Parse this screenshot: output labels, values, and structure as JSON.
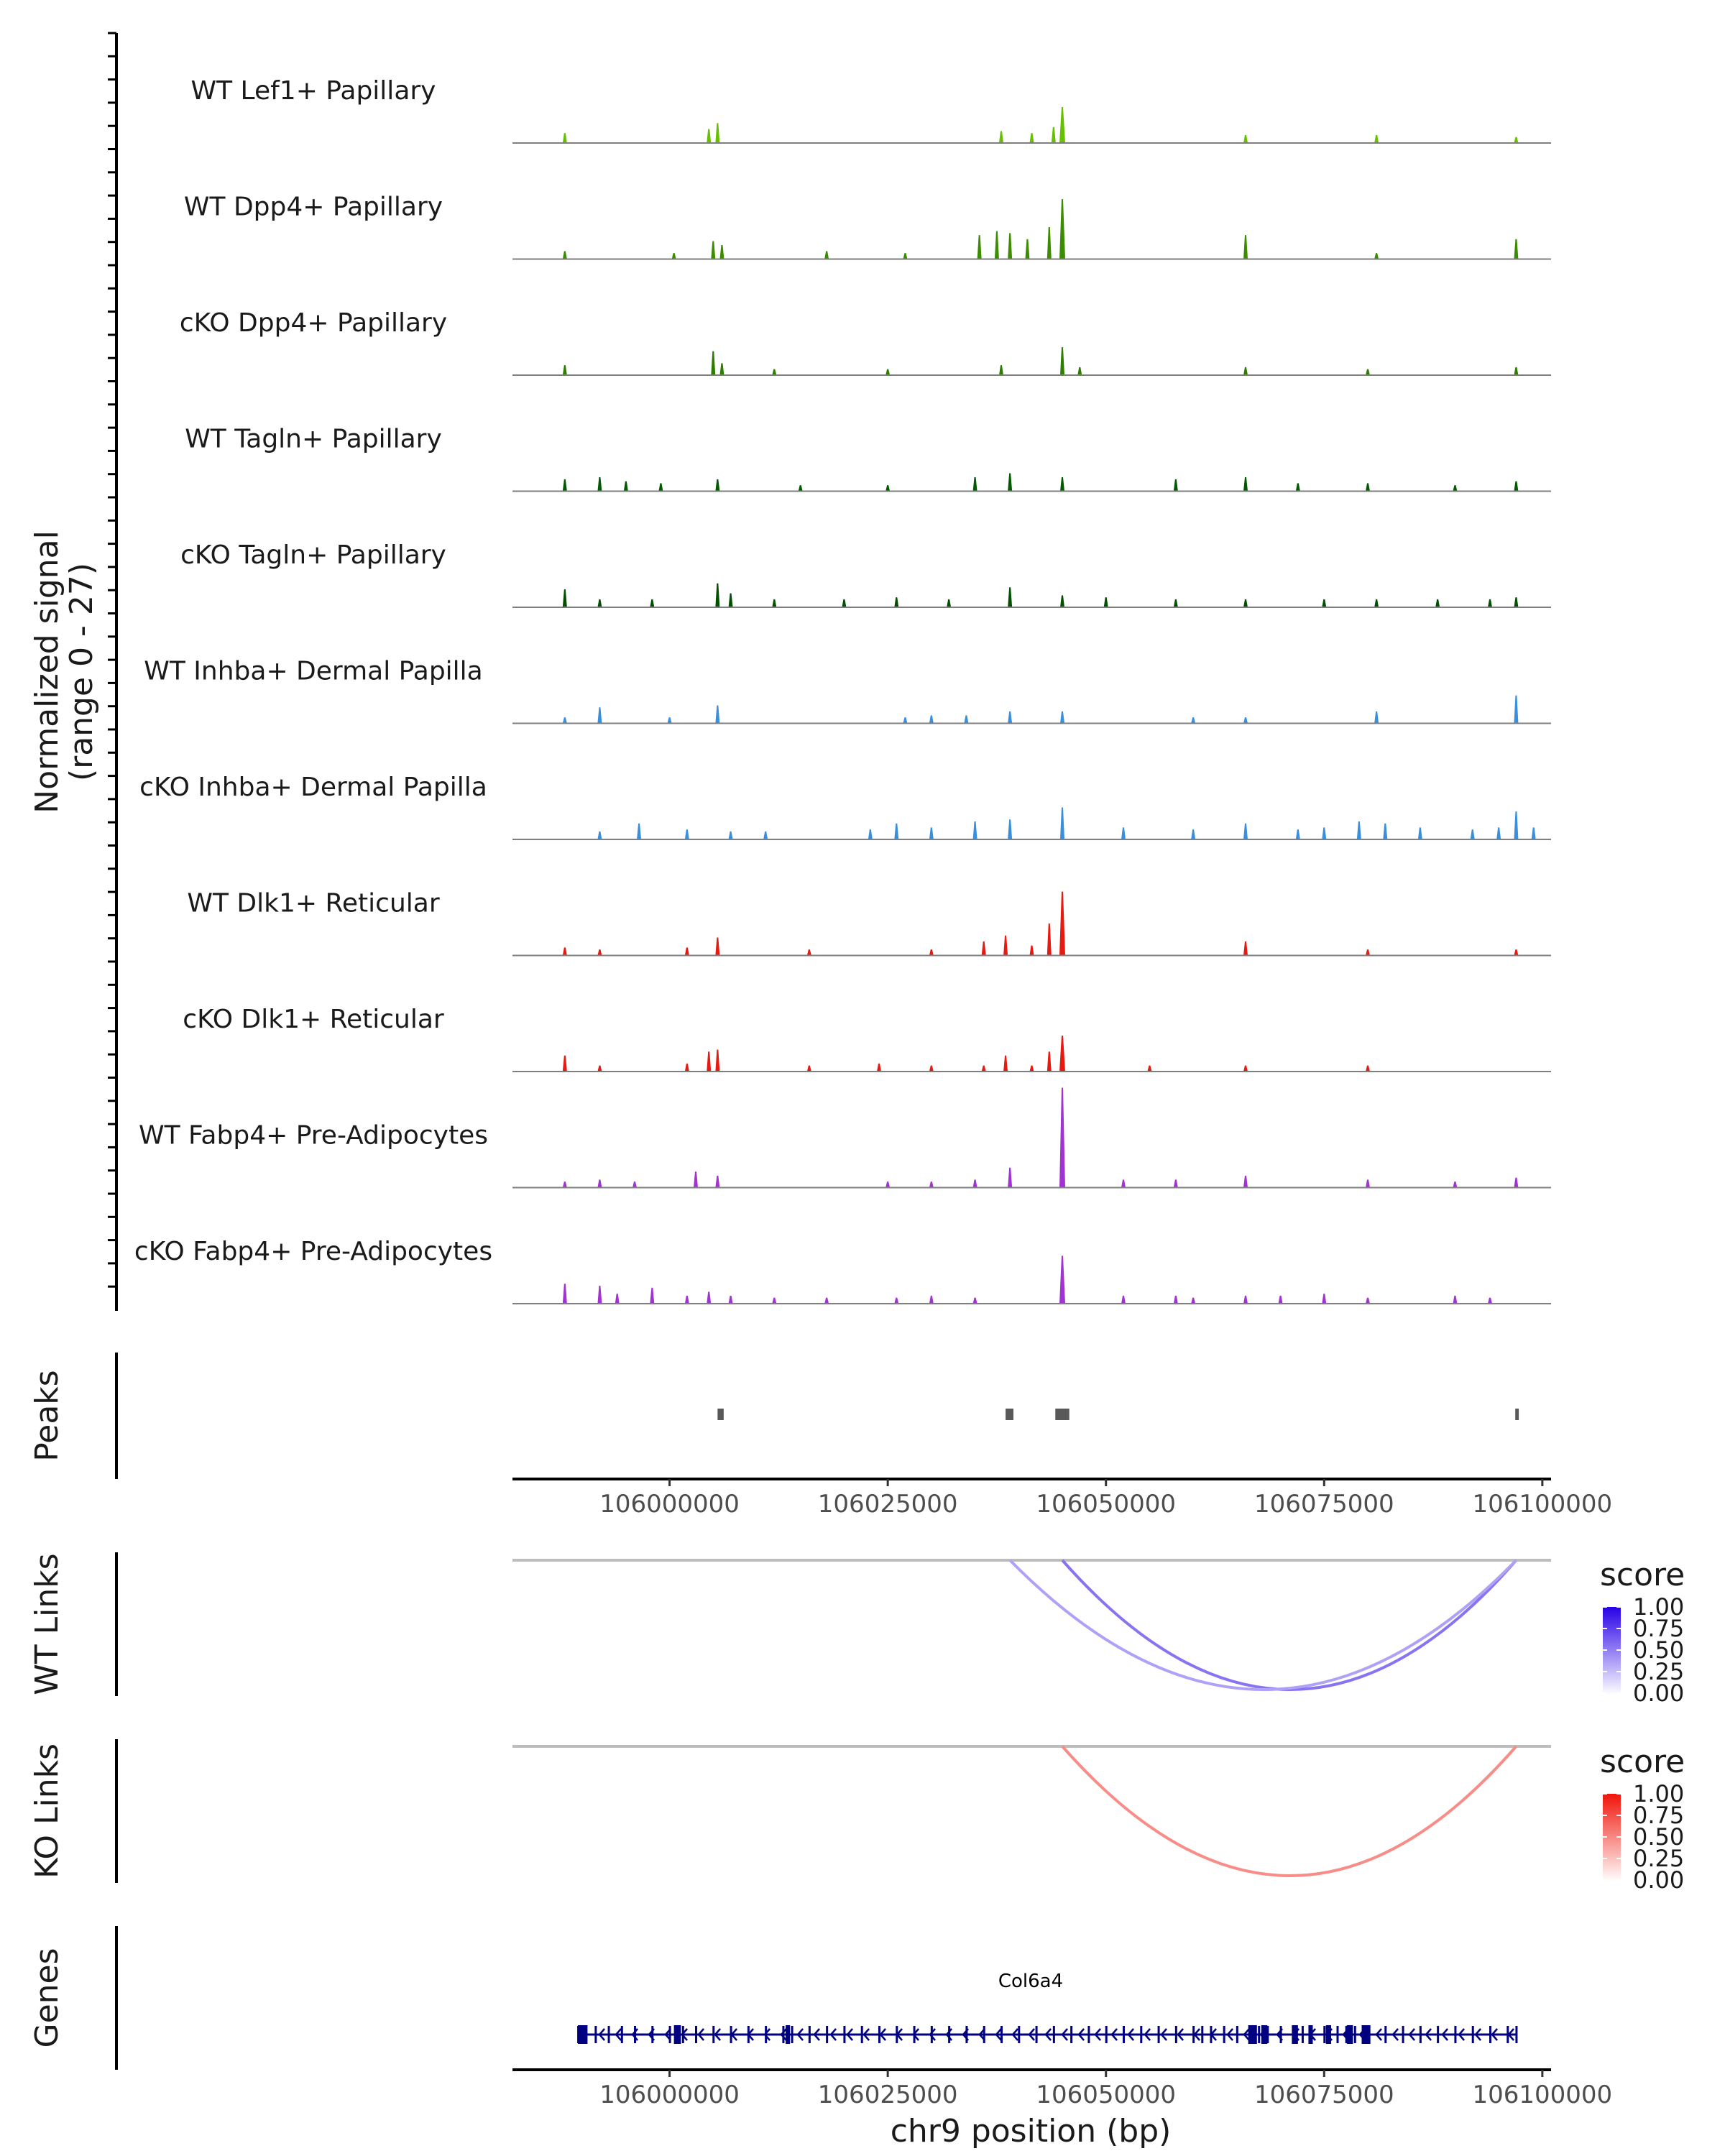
{
  "chart_data": {
    "type": "genome-coverage-plot",
    "region": {
      "chromosome": "chr9",
      "start": 105982000,
      "end": 106101000
    },
    "xlabel": "chr9 position (bp)",
    "x_ticks": [
      106000000,
      106025000,
      106050000,
      106075000,
      106100000
    ],
    "x_tick_labels": [
      "106000000",
      "106025000",
      "106050000",
      "106075000",
      "106100000"
    ],
    "coverage": {
      "ylabel_line1": "Normalized signal",
      "ylabel_line2": "(range 0 - 27)",
      "ylim": [
        0,
        27
      ],
      "tracks": [
        {
          "name": "WT Lef1+ Papillary",
          "color": "#66c000",
          "peaks": [
            [
              105988000,
              2.5
            ],
            [
              106004500,
              3.5
            ],
            [
              106005500,
              5
            ],
            [
              106038000,
              3
            ],
            [
              106041500,
              2.5
            ],
            [
              106044000,
              4
            ],
            [
              106045000,
              9
            ],
            [
              106066000,
              2
            ],
            [
              106081000,
              2
            ],
            [
              106097000,
              1.5
            ]
          ]
        },
        {
          "name": "WT Dpp4+ Papillary",
          "color": "#3c8c00",
          "peaks": [
            [
              105988000,
              2
            ],
            [
              106000500,
              1.5
            ],
            [
              106005000,
              4.5
            ],
            [
              106006000,
              3.5
            ],
            [
              106018000,
              2
            ],
            [
              106027000,
              1.5
            ],
            [
              106035500,
              6
            ],
            [
              106037500,
              7
            ],
            [
              106039000,
              6.5
            ],
            [
              106041000,
              5
            ],
            [
              106043500,
              8
            ],
            [
              106045000,
              15
            ],
            [
              106066000,
              6
            ],
            [
              106081000,
              1.5
            ],
            [
              106097000,
              5
            ]
          ]
        },
        {
          "name": "cKO Dpp4+ Papillary",
          "color": "#2e7d00",
          "peaks": [
            [
              105988000,
              2.5
            ],
            [
              106005000,
              6
            ],
            [
              106006000,
              3
            ],
            [
              106012000,
              1.5
            ],
            [
              106025000,
              1.5
            ],
            [
              106038000,
              2.5
            ],
            [
              106045000,
              7
            ],
            [
              106047000,
              2
            ],
            [
              106066000,
              2
            ],
            [
              106080000,
              1.5
            ],
            [
              106097000,
              2
            ]
          ]
        },
        {
          "name": "WT Tagln+ Papillary",
          "color": "#005a00",
          "peaks": [
            [
              105988000,
              3
            ],
            [
              105992000,
              3.5
            ],
            [
              105995000,
              2.5
            ],
            [
              105999000,
              2
            ],
            [
              106005500,
              3
            ],
            [
              106015000,
              1.5
            ],
            [
              106025000,
              1.5
            ],
            [
              106035000,
              3.5
            ],
            [
              106039000,
              4.5
            ],
            [
              106045000,
              3.5
            ],
            [
              106058000,
              3
            ],
            [
              106066000,
              3.5
            ],
            [
              106072000,
              2
            ],
            [
              106080000,
              2
            ],
            [
              106090000,
              1.5
            ],
            [
              106097000,
              2.5
            ]
          ]
        },
        {
          "name": "cKO Tagln+ Papillary",
          "color": "#005000",
          "peaks": [
            [
              105988000,
              4.5
            ],
            [
              105992000,
              2
            ],
            [
              105998000,
              2
            ],
            [
              106005500,
              6
            ],
            [
              106007000,
              3.5
            ],
            [
              106012000,
              2
            ],
            [
              106020000,
              2
            ],
            [
              106026000,
              2.5
            ],
            [
              106032000,
              2
            ],
            [
              106039000,
              5
            ],
            [
              106045000,
              3
            ],
            [
              106050000,
              2.5
            ],
            [
              106058000,
              2
            ],
            [
              106066000,
              2
            ],
            [
              106075000,
              2
            ],
            [
              106081000,
              2
            ],
            [
              106088000,
              2
            ],
            [
              106094000,
              2
            ],
            [
              106097000,
              2.5
            ]
          ]
        },
        {
          "name": "WT Inhba+ Dermal Papilla",
          "color": "#3a8fdc",
          "peaks": [
            [
              105988000,
              1.5
            ],
            [
              105992000,
              4
            ],
            [
              106000000,
              1.5
            ],
            [
              106005500,
              4.5
            ],
            [
              106027000,
              1.5
            ],
            [
              106030000,
              2
            ],
            [
              106034000,
              2
            ],
            [
              106039000,
              3
            ],
            [
              106045000,
              3
            ],
            [
              106060000,
              1.5
            ],
            [
              106066000,
              1.5
            ],
            [
              106081000,
              3
            ],
            [
              106097000,
              7
            ]
          ]
        },
        {
          "name": "cKO Inhba+ Dermal Papilla",
          "color": "#3a8fdc",
          "peaks": [
            [
              105992000,
              2
            ],
            [
              105996500,
              4
            ],
            [
              106002000,
              2.5
            ],
            [
              106007000,
              2
            ],
            [
              106011000,
              2
            ],
            [
              106023000,
              2.5
            ],
            [
              106026000,
              4
            ],
            [
              106030000,
              3
            ],
            [
              106035000,
              4.5
            ],
            [
              106039000,
              5
            ],
            [
              106045000,
              8
            ],
            [
              106052000,
              3
            ],
            [
              106060000,
              2.5
            ],
            [
              106066000,
              4
            ],
            [
              106072000,
              2.5
            ],
            [
              106075000,
              3
            ],
            [
              106079000,
              4.5
            ],
            [
              106082000,
              4
            ],
            [
              106086000,
              3
            ],
            [
              106092000,
              2.5
            ],
            [
              106095000,
              3
            ],
            [
              106097000,
              7
            ],
            [
              106099000,
              3
            ]
          ]
        },
        {
          "name": "WT Dlk1+ Reticular",
          "color": "#e8190f",
          "peaks": [
            [
              105988000,
              2
            ],
            [
              105992000,
              1.5
            ],
            [
              106002000,
              2
            ],
            [
              106005500,
              4.5
            ],
            [
              106016000,
              1.5
            ],
            [
              106030000,
              1.5
            ],
            [
              106036000,
              3.5
            ],
            [
              106038500,
              5
            ],
            [
              106041500,
              2.5
            ],
            [
              106043500,
              8
            ],
            [
              106045000,
              16
            ],
            [
              106066000,
              3.5
            ],
            [
              106080000,
              1.5
            ],
            [
              106097000,
              1.5
            ]
          ]
        },
        {
          "name": "cKO Dlk1+ Reticular",
          "color": "#e8190f",
          "peaks": [
            [
              105988000,
              4
            ],
            [
              105992000,
              1.5
            ],
            [
              106002000,
              2
            ],
            [
              106004500,
              5
            ],
            [
              106005500,
              5.5
            ],
            [
              106016000,
              1.5
            ],
            [
              106024000,
              2
            ],
            [
              106030000,
              1.5
            ],
            [
              106036000,
              1.5
            ],
            [
              106038500,
              4
            ],
            [
              106041500,
              1.5
            ],
            [
              106043500,
              5
            ],
            [
              106045000,
              9
            ],
            [
              106055000,
              1.5
            ],
            [
              106066000,
              1.5
            ],
            [
              106080000,
              1.5
            ]
          ]
        },
        {
          "name": "WT Fabp4+ Pre-Adipocytes",
          "color": "#a033d1",
          "peaks": [
            [
              105988000,
              1.5
            ],
            [
              105992000,
              2
            ],
            [
              105996000,
              1.5
            ],
            [
              106003000,
              4
            ],
            [
              106005500,
              3
            ],
            [
              106025000,
              1.5
            ],
            [
              106030000,
              1.5
            ],
            [
              106035000,
              2
            ],
            [
              106039000,
              5
            ],
            [
              106045000,
              25
            ],
            [
              106052000,
              2
            ],
            [
              106058000,
              2
            ],
            [
              106066000,
              3
            ],
            [
              106080000,
              2
            ],
            [
              106090000,
              1.5
            ],
            [
              106097000,
              2.5
            ]
          ]
        },
        {
          "name": "cKO Fabp4+ Pre-Adipocytes",
          "color": "#a033d1",
          "peaks": [
            [
              105988000,
              5
            ],
            [
              105992000,
              4.5
            ],
            [
              105994000,
              2.5
            ],
            [
              105998000,
              4
            ],
            [
              106002000,
              2
            ],
            [
              106004500,
              3
            ],
            [
              106007000,
              2
            ],
            [
              106012000,
              1.5
            ],
            [
              106018000,
              1.5
            ],
            [
              106026000,
              1.5
            ],
            [
              106030000,
              2
            ],
            [
              106035000,
              1.5
            ],
            [
              106045000,
              12
            ],
            [
              106052000,
              2
            ],
            [
              106058000,
              2
            ],
            [
              106060000,
              1.5
            ],
            [
              106066000,
              2
            ],
            [
              106070000,
              2
            ],
            [
              106075000,
              2.5
            ],
            [
              106080000,
              1.5
            ],
            [
              106090000,
              2
            ],
            [
              106094000,
              1.5
            ]
          ]
        }
      ]
    },
    "peaks_track": {
      "label": "Peaks",
      "regions": [
        [
          106005500,
          106006200
        ],
        [
          106038500,
          106039400
        ],
        [
          106044200,
          106045800
        ],
        [
          106096900,
          106097300
        ]
      ]
    },
    "wt_links": {
      "label": "WT Links",
      "legend_title": "score",
      "legend_ticks": [
        "1.00",
        "0.75",
        "0.50",
        "0.25",
        "0.00"
      ],
      "legend_color_high": "#2800e6",
      "links": [
        {
          "start": 106045000,
          "end": 106097000,
          "score": 0.5
        },
        {
          "start": 106039000,
          "end": 106097000,
          "score": 0.2
        }
      ]
    },
    "ko_links": {
      "label": "KO Links",
      "legend_title": "score",
      "legend_ticks": [
        "1.00",
        "0.75",
        "0.50",
        "0.25",
        "0.00"
      ],
      "legend_color_high": "#f0140a",
      "links": [
        {
          "start": 106045000,
          "end": 106097000,
          "score": 0.4
        }
      ]
    },
    "genes_track": {
      "label": "Genes",
      "gene_name": "Col6a4",
      "strand": "-",
      "start": 105989500,
      "end": 106097000,
      "exons": [
        105989500,
        105991500,
        105993000,
        105994500,
        105996000,
        105998000,
        106000000,
        106001500,
        106003000,
        106005000,
        106007000,
        106009000,
        106011000,
        106013000,
        106014000,
        106016000,
        106018000,
        106020000,
        106022000,
        106024000,
        106026000,
        106028000,
        106030000,
        106032000,
        106034000,
        106036000,
        106038000,
        106040000,
        106042000,
        106044000,
        106046000,
        106048000,
        106050000,
        106052000,
        106054000,
        106056000,
        106058000,
        106060000,
        106061000,
        106062000,
        106063500,
        106065000,
        106066500,
        106067500,
        106068500,
        106070000,
        106071500,
        106072500,
        106073500,
        106075000,
        106076500,
        106077500,
        106078500,
        106080000,
        106082000,
        106084000,
        106086000,
        106088000,
        106090000,
        106092000,
        106094000,
        106096000,
        106097000
      ],
      "thick_exons": [
        [
          105989500,
          105990600
        ],
        [
          106000500,
          106001300
        ],
        [
          106013300,
          106013800
        ],
        [
          106066300,
          106067300
        ],
        [
          106067800,
          106068500
        ],
        [
          106071300,
          106072000
        ],
        [
          106073200,
          106073700
        ],
        [
          106075200,
          106075800
        ],
        [
          106077600,
          106078300
        ],
        [
          106079300,
          106080300
        ]
      ]
    }
  }
}
